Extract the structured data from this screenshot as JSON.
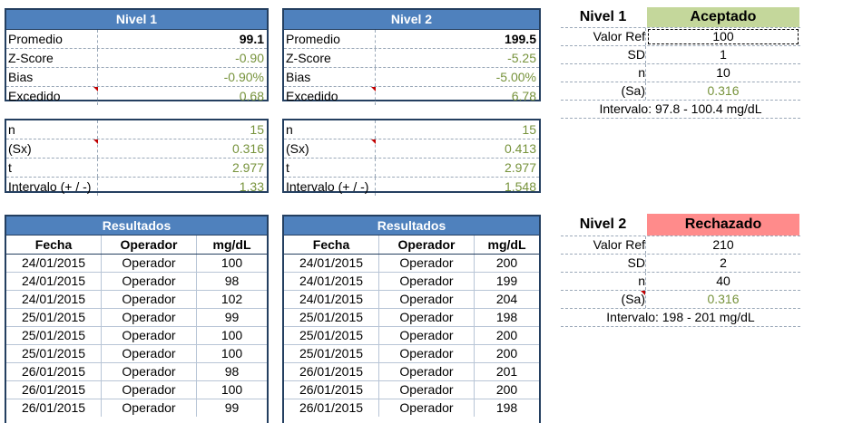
{
  "nivel1_stats": {
    "title": "Nivel 1",
    "rows": [
      {
        "label": "Promedio",
        "value": "99.1"
      },
      {
        "label": "Z-Score",
        "value": "-0.90"
      },
      {
        "label": "Bias",
        "value": "-0.90%"
      },
      {
        "label": "Excedido",
        "value": "0.68"
      }
    ]
  },
  "nivel2_stats": {
    "title": "Nivel 2",
    "rows": [
      {
        "label": "Promedio",
        "value": "199.5"
      },
      {
        "label": "Z-Score",
        "value": "-5.25"
      },
      {
        "label": "Bias",
        "value": "-5.00%"
      },
      {
        "label": "Excedido",
        "value": "6.78"
      }
    ]
  },
  "nivel1_interval": {
    "rows": [
      {
        "label": "n",
        "value": "15"
      },
      {
        "label": "(Sx)",
        "value": "0.316"
      },
      {
        "label": "t",
        "value": "2.977"
      },
      {
        "label": "Intervalo (+ / -)",
        "value": "1.33"
      }
    ]
  },
  "nivel2_interval": {
    "rows": [
      {
        "label": "n",
        "value": "15"
      },
      {
        "label": "(Sx)",
        "value": "0.413"
      },
      {
        "label": "t",
        "value": "2.977"
      },
      {
        "label": "Intervalo (+ / -)",
        "value": "1.548"
      }
    ]
  },
  "results1": {
    "title": "Resultados",
    "headers": [
      "Fecha",
      "Operador",
      "mg/dL"
    ],
    "rows": [
      [
        "24/01/2015",
        "Operador",
        "100"
      ],
      [
        "24/01/2015",
        "Operador",
        "98"
      ],
      [
        "24/01/2015",
        "Operador",
        "102"
      ],
      [
        "25/01/2015",
        "Operador",
        "99"
      ],
      [
        "25/01/2015",
        "Operador",
        "100"
      ],
      [
        "25/01/2015",
        "Operador",
        "100"
      ],
      [
        "26/01/2015",
        "Operador",
        "98"
      ],
      [
        "26/01/2015",
        "Operador",
        "100"
      ],
      [
        "26/01/2015",
        "Operador",
        "99"
      ]
    ]
  },
  "results2": {
    "title": "Resultados",
    "headers": [
      "Fecha",
      "Operador",
      "mg/dL"
    ],
    "rows": [
      [
        "24/01/2015",
        "Operador",
        "200"
      ],
      [
        "24/01/2015",
        "Operador",
        "199"
      ],
      [
        "24/01/2015",
        "Operador",
        "204"
      ],
      [
        "25/01/2015",
        "Operador",
        "198"
      ],
      [
        "25/01/2015",
        "Operador",
        "200"
      ],
      [
        "25/01/2015",
        "Operador",
        "200"
      ],
      [
        "26/01/2015",
        "Operador",
        "201"
      ],
      [
        "26/01/2015",
        "Operador",
        "200"
      ],
      [
        "26/01/2015",
        "Operador",
        "198"
      ]
    ]
  },
  "ref1": {
    "title": "Nivel 1",
    "status": "Aceptado",
    "status_color": "#c4d79b",
    "rows": [
      {
        "label": "Valor Ref",
        "value": "100"
      },
      {
        "label": "SD",
        "value": "1"
      },
      {
        "label": "n",
        "value": "10"
      },
      {
        "label": "(Sa)",
        "value": "0.316"
      }
    ],
    "interval": "Intervalo: 97.8 - 100.4 mg/dL"
  },
  "ref2": {
    "title": "Nivel 2",
    "status": "Rechazado",
    "status_color": "#ff8b8b",
    "rows": [
      {
        "label": "Valor Ref",
        "value": "210"
      },
      {
        "label": "SD",
        "value": "2"
      },
      {
        "label": "n",
        "value": "40"
      },
      {
        "label": "(Sa)",
        "value": "0.316"
      }
    ],
    "interval": "Intervalo: 198 - 201 mg/dL"
  },
  "colors": {
    "header_blue": "#4f81bd",
    "border_navy": "#243f60",
    "value_green": "#77933c",
    "comment_red": "#c00000"
  }
}
